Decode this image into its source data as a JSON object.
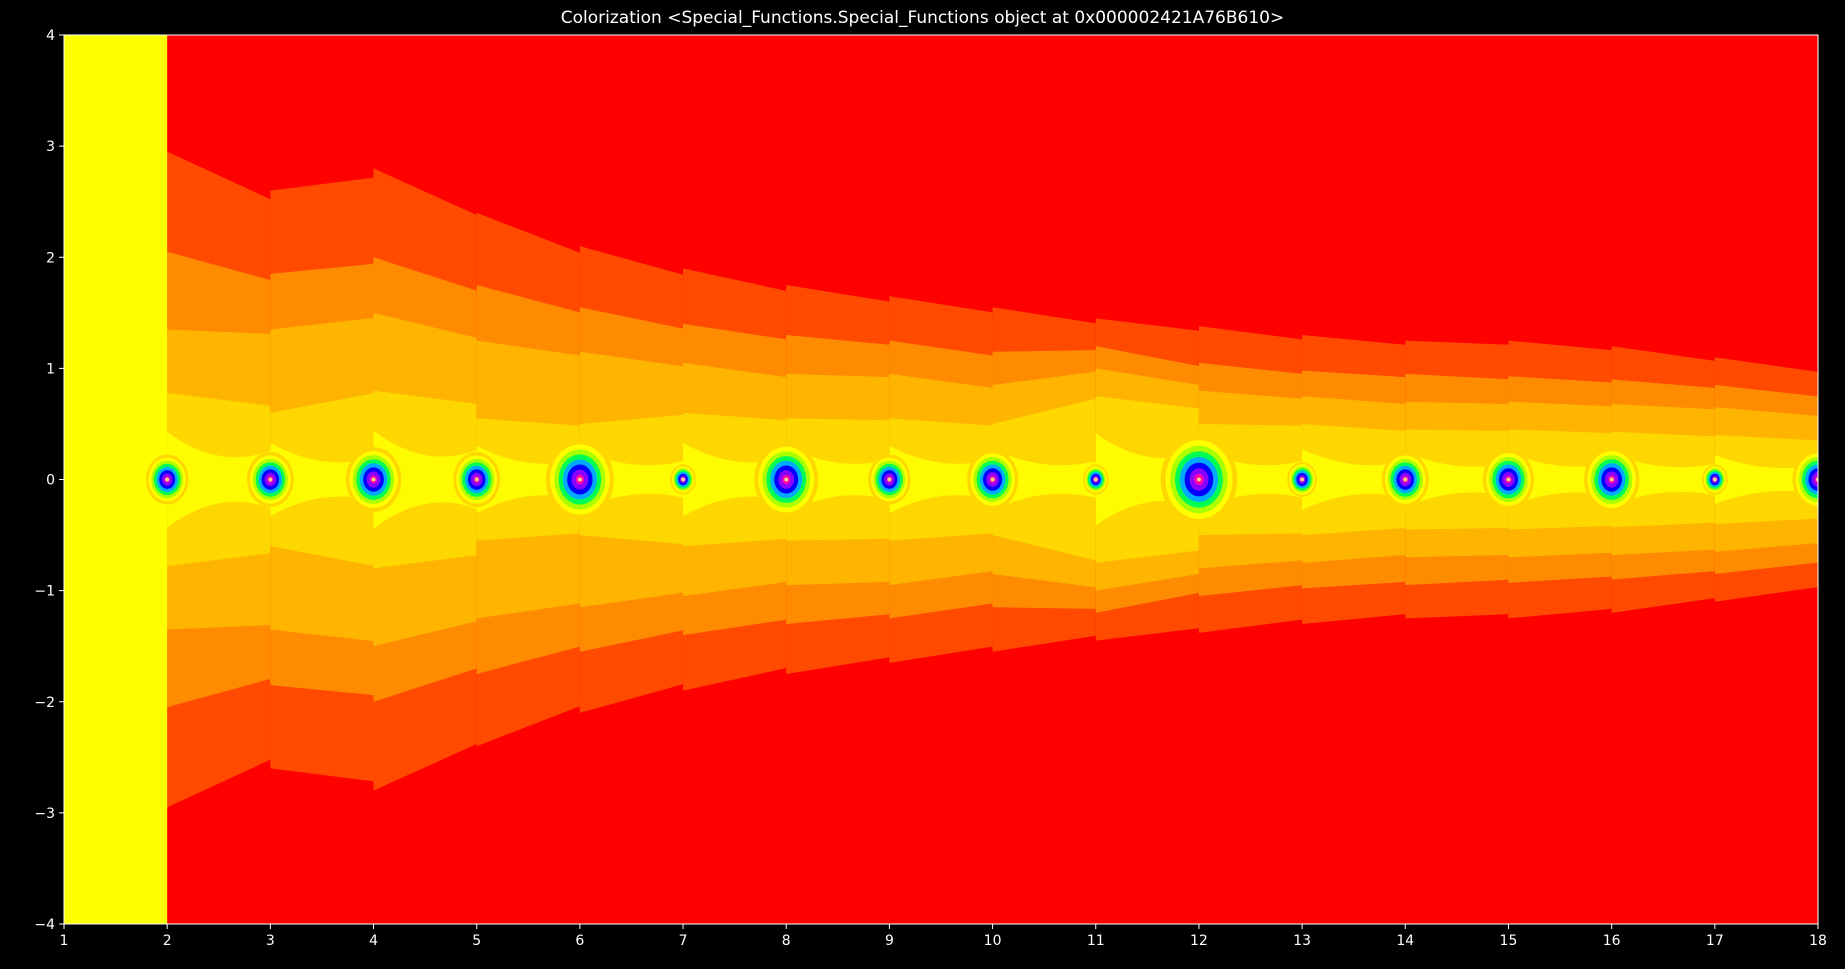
{
  "title": "Colorization <Special_Functions.Special_Functions object at 0x000002421A76B610>",
  "chart_data": {
    "type": "heatmap",
    "title": "Colorization <Special_Functions.Special_Functions object at 0x000002421A76B610>",
    "xlabel": "",
    "ylabel": "",
    "xlim": [
      1,
      18
    ],
    "ylim": [
      -4,
      4
    ],
    "x_ticks": [
      1,
      2,
      3,
      4,
      5,
      6,
      7,
      8,
      9,
      10,
      11,
      12,
      13,
      14,
      15,
      16,
      17,
      18
    ],
    "y_ticks": [
      4,
      3,
      2,
      1,
      0,
      -1,
      -2,
      -3,
      -4
    ],
    "x_tick_labels": [
      "1",
      "2",
      "3",
      "4",
      "5",
      "6",
      "7",
      "8",
      "9",
      "10",
      "11",
      "12",
      "13",
      "14",
      "15",
      "16",
      "17",
      "18"
    ],
    "y_tick_labels": [
      "4",
      "3",
      "2",
      "1",
      "0",
      "−1",
      "−2",
      "−3",
      "−4"
    ],
    "grid": false,
    "background": "#000000",
    "axis_color": "#ffffff",
    "colormap": [
      "#ff0000",
      "#ff4a00",
      "#ff8c00",
      "#ffb400",
      "#ffd700",
      "#ffff00",
      "#aaff00",
      "#00ff55",
      "#00aaff",
      "#0000ff",
      "#8a00ff",
      "#ff00aa"
    ],
    "left_strip": {
      "x_range": [
        1,
        2
      ],
      "color": "#ffff00"
    },
    "contour_levels": [
      0.78,
      1.35,
      2.05,
      2.95
    ],
    "strip_level_widths": [
      {
        "x_start": 2,
        "widths": [
          0.78,
          1.35,
          2.05,
          2.95
        ]
      },
      {
        "x_start": 3,
        "widths": [
          0.6,
          1.35,
          1.85,
          2.6
        ]
      },
      {
        "x_start": 4,
        "widths": [
          0.8,
          1.5,
          2.0,
          2.8
        ]
      },
      {
        "x_start": 5,
        "widths": [
          0.55,
          1.25,
          1.75,
          2.4
        ]
      },
      {
        "x_start": 6,
        "widths": [
          0.5,
          1.15,
          1.55,
          2.1
        ]
      },
      {
        "x_start": 7,
        "widths": [
          0.6,
          1.05,
          1.4,
          1.9
        ]
      },
      {
        "x_start": 8,
        "widths": [
          0.55,
          0.95,
          1.3,
          1.75
        ]
      },
      {
        "x_start": 9,
        "widths": [
          0.55,
          0.95,
          1.25,
          1.65
        ]
      },
      {
        "x_start": 10,
        "widths": [
          0.5,
          0.85,
          1.15,
          1.55
        ]
      },
      {
        "x_start": 11,
        "widths": [
          0.75,
          1.0,
          1.2,
          1.45
        ]
      },
      {
        "x_start": 12,
        "widths": [
          0.5,
          0.8,
          1.05,
          1.38
        ]
      },
      {
        "x_start": 13,
        "widths": [
          0.5,
          0.75,
          0.98,
          1.3
        ]
      },
      {
        "x_start": 14,
        "widths": [
          0.45,
          0.7,
          0.95,
          1.25
        ]
      },
      {
        "x_start": 15,
        "widths": [
          0.45,
          0.7,
          0.93,
          1.25
        ]
      },
      {
        "x_start": 16,
        "widths": [
          0.43,
          0.68,
          0.9,
          1.2
        ]
      },
      {
        "x_start": 17,
        "widths": [
          0.4,
          0.65,
          0.85,
          1.1
        ]
      }
    ],
    "poles": [
      {
        "x": 2,
        "y": 0,
        "strength": 0.5
      },
      {
        "x": 3,
        "y": 0,
        "strength": 0.55
      },
      {
        "x": 4,
        "y": 0,
        "strength": 0.65
      },
      {
        "x": 5,
        "y": 0,
        "strength": 0.55
      },
      {
        "x": 6,
        "y": 0,
        "strength": 0.8
      },
      {
        "x": 7,
        "y": 0,
        "strength": 0.3
      },
      {
        "x": 8,
        "y": 0,
        "strength": 0.75
      },
      {
        "x": 9,
        "y": 0,
        "strength": 0.5
      },
      {
        "x": 10,
        "y": 0,
        "strength": 0.6
      },
      {
        "x": 11,
        "y": 0,
        "strength": 0.3
      },
      {
        "x": 12,
        "y": 0,
        "strength": 0.9
      },
      {
        "x": 13,
        "y": 0,
        "strength": 0.35
      },
      {
        "x": 14,
        "y": 0,
        "strength": 0.55
      },
      {
        "x": 15,
        "y": 0,
        "strength": 0.6
      },
      {
        "x": 16,
        "y": 0,
        "strength": 0.65
      },
      {
        "x": 17,
        "y": 0,
        "strength": 0.3
      },
      {
        "x": 18,
        "y": 0,
        "strength": 0.6
      }
    ]
  }
}
